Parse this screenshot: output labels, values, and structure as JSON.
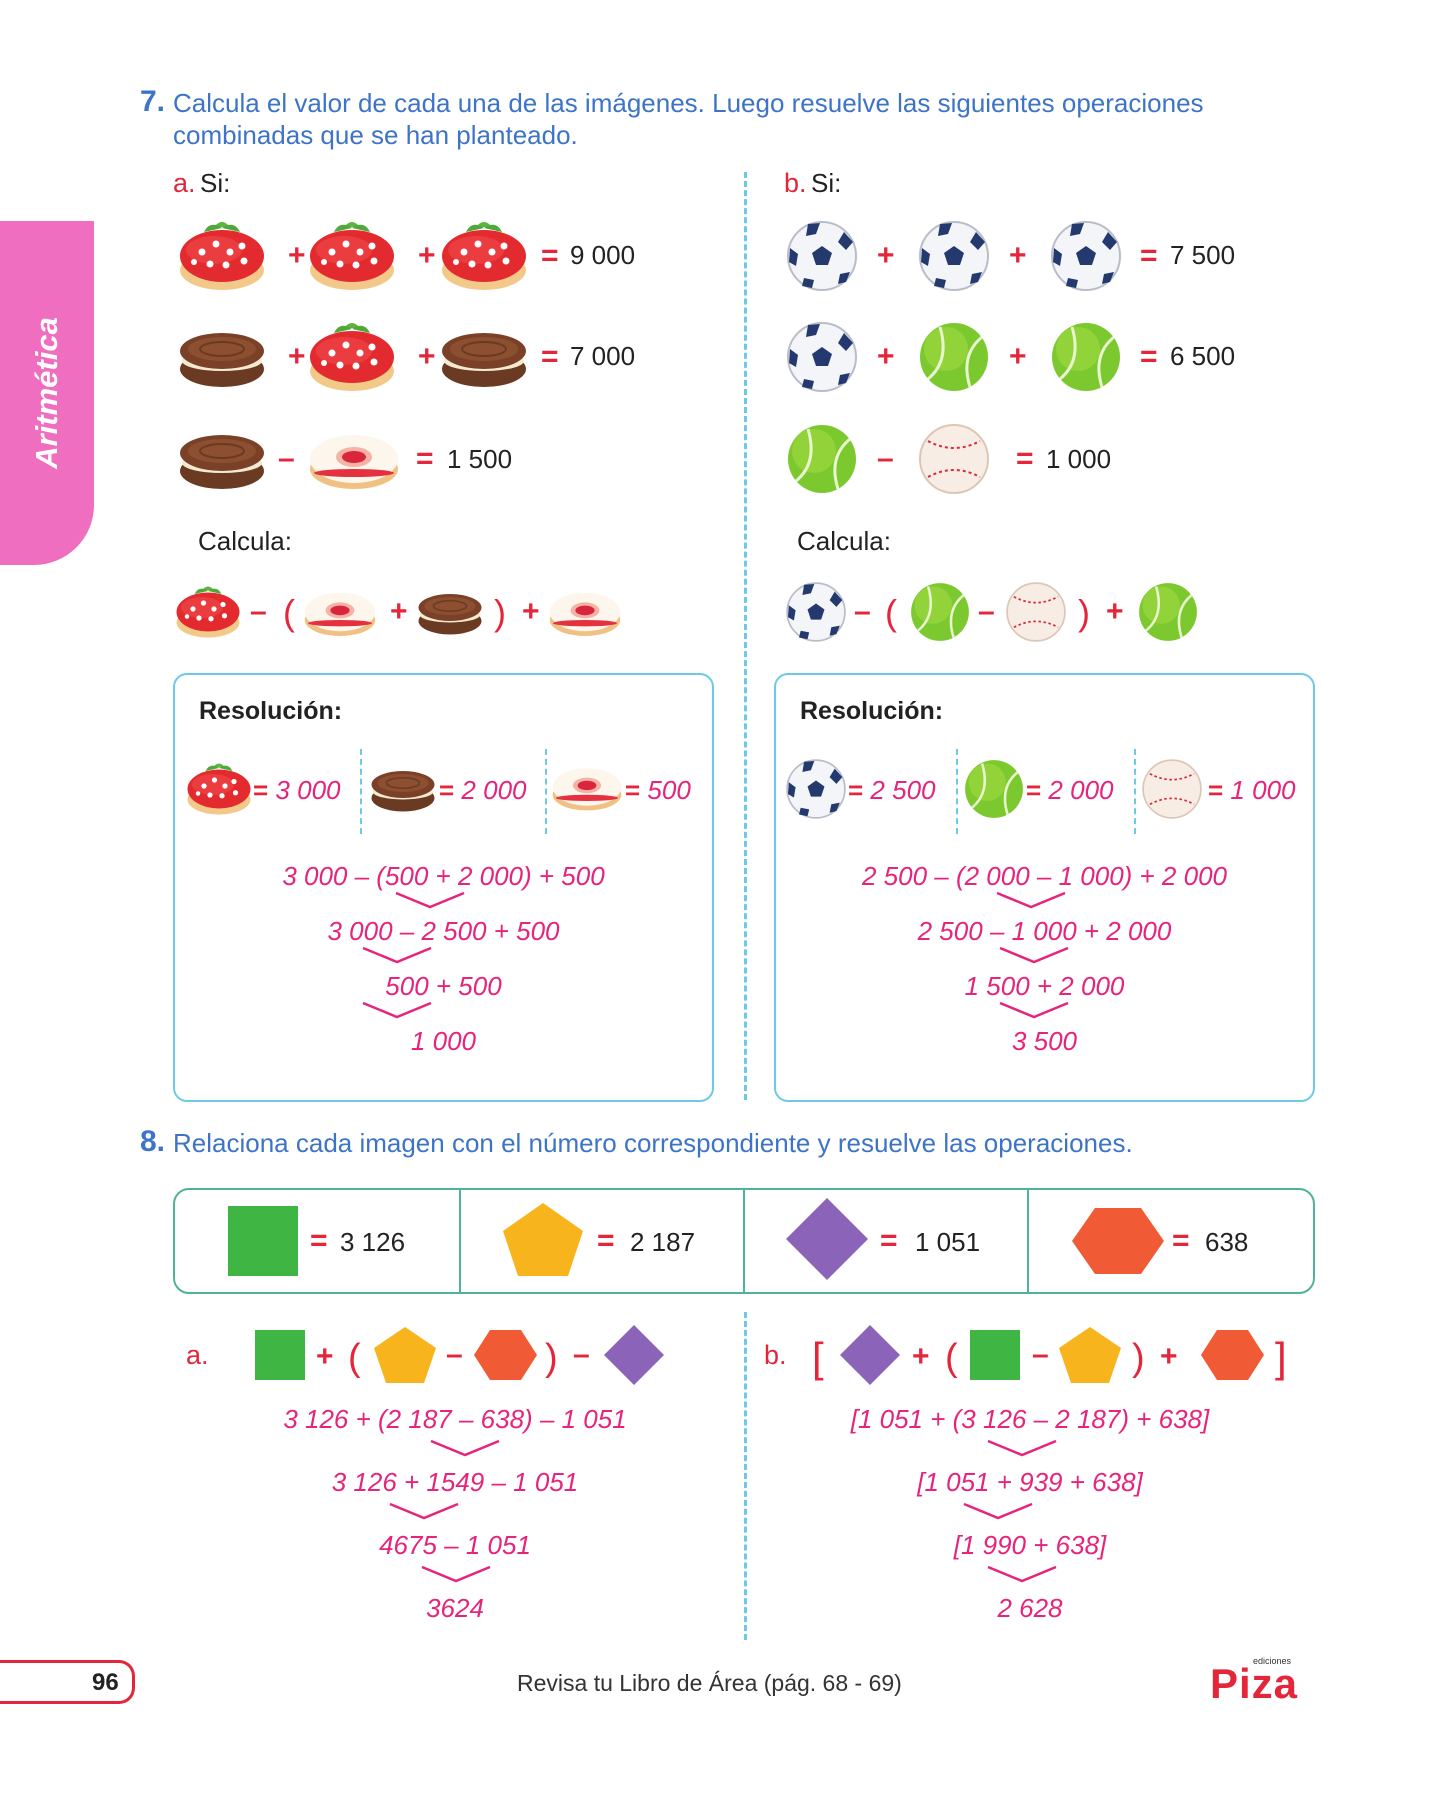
{
  "side_tab": "Aritmética",
  "q7": {
    "number": "7.",
    "text_line1": "Calcula el valor de cada una de las imágenes. Luego resuelve las siguientes operaciones",
    "text_line2": "combinadas que se han planteado.",
    "a": {
      "label": "a.",
      "si": "Si:",
      "eq1": "9 000",
      "eq2": "7 000",
      "eq3": "1 500",
      "calcula": "Calcula:",
      "resolucion": "Resolución:",
      "v1": "3 000",
      "v2": "2 000",
      "v3": "500",
      "steps": [
        "3 000 – (500 + 2 000) + 500",
        "3 000 – 2 500 + 500",
        "500 + 500",
        "1 000"
      ]
    },
    "b": {
      "label": "b.",
      "si": "Si:",
      "eq1": "7 500",
      "eq2": "6 500",
      "eq3": "1 000",
      "calcula": "Calcula:",
      "resolucion": "Resolución:",
      "v1": "2 500",
      "v2": "2 000",
      "v3": "1 000",
      "steps": [
        "2 500 – (2 000 – 1 000) + 2 000",
        "2 500 – 1 000 + 2 000",
        "1 500 + 2 000",
        "3 500"
      ]
    }
  },
  "q8": {
    "number": "8.",
    "text": "Relaciona cada imagen con el número correspondiente y resuelve las operaciones.",
    "legend": [
      "3 126",
      "2 187",
      "1 051",
      "638"
    ],
    "a": {
      "label": "a.",
      "steps": [
        "3 126 + (2 187 – 638) – 1 051",
        "3 126 + 1549 – 1 051",
        "4675 – 1 051",
        "3624"
      ]
    },
    "b": {
      "label": "b.",
      "steps": [
        "[1 051 + (3 126 – 2 187) + 638]",
        "[1 051 + 939 + 638]",
        "[1 990 + 638]",
        "2 628"
      ]
    }
  },
  "footer": {
    "page": "96",
    "ref": "Revisa tu Libro de Área (pág. 68 - 69)",
    "brand_small": "ediciones",
    "brand": "Piza"
  },
  "colors": {
    "blue": "#3e74c8",
    "red": "#e3263a",
    "magenta": "#e6247b",
    "pink_tab": "#f06ec0",
    "box_border": "#6ccae6",
    "legend_border": "#4fb398",
    "green_square": "#3fb544",
    "yellow_pentagon": "#f8b41c",
    "purple_diamond": "#8b63b9",
    "orange_hexagon": "#f05a34"
  }
}
